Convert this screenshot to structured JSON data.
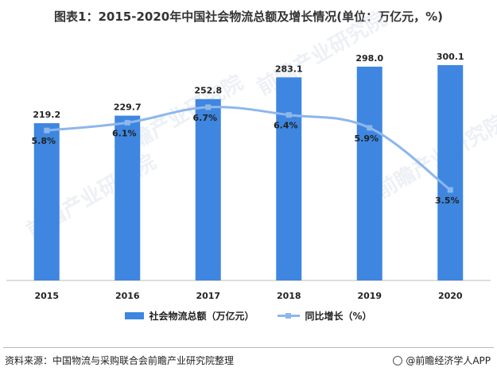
{
  "title": "图表1：2015-2020年中国社会物流总额及增长情况(单位：万亿元，%)",
  "chart_data": {
    "type": "bar",
    "categories": [
      "2015",
      "2016",
      "2017",
      "2018",
      "2019",
      "2020"
    ],
    "series": [
      {
        "name": "社会物流总额（万亿元）",
        "type": "bar",
        "values": [
          219.2,
          229.7,
          252.8,
          283.1,
          298.0,
          300.1
        ],
        "labels": [
          "219.2",
          "229.7",
          "252.8",
          "283.1",
          "298.0",
          "300.1"
        ],
        "color": "#3e86e0"
      },
      {
        "name": "同比增长（%）",
        "type": "line",
        "values": [
          5.8,
          6.1,
          6.7,
          6.4,
          5.9,
          3.5
        ],
        "labels": [
          "5.8%",
          "6.1%",
          "6.7%",
          "6.4%",
          "5.9%",
          "3.5%"
        ],
        "color": "#8db7ea"
      }
    ],
    "bar_axis_range": [
      0,
      300.1
    ],
    "line_axis_range": [
      0,
      9
    ],
    "grid": false,
    "legend_position": "bottom"
  },
  "source": "资料来源：中国物流与采购联合会前瞻产业研究院整理",
  "brand": "@前瞻经济学人APP",
  "watermark": "前瞻产业研究院"
}
